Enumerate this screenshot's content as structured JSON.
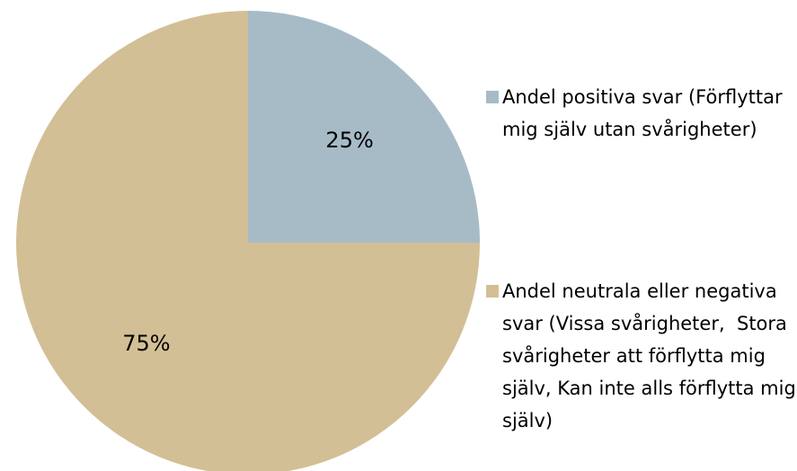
{
  "chart_data": {
    "type": "pie",
    "categories": [
      "Andel positiva svar (Förflyttar mig själv utan svårigheter)",
      "Andel neutrala eller negativa svar (Vissa svårigheter,  Stora svårigheter att förflytta mig själv, Kan inte alls förflytta mig själv)"
    ],
    "values": [
      25,
      75
    ],
    "value_labels": [
      "25%",
      "75%"
    ],
    "colors": [
      "#a7bbc7",
      "#d3bf96"
    ],
    "legend": "right"
  }
}
